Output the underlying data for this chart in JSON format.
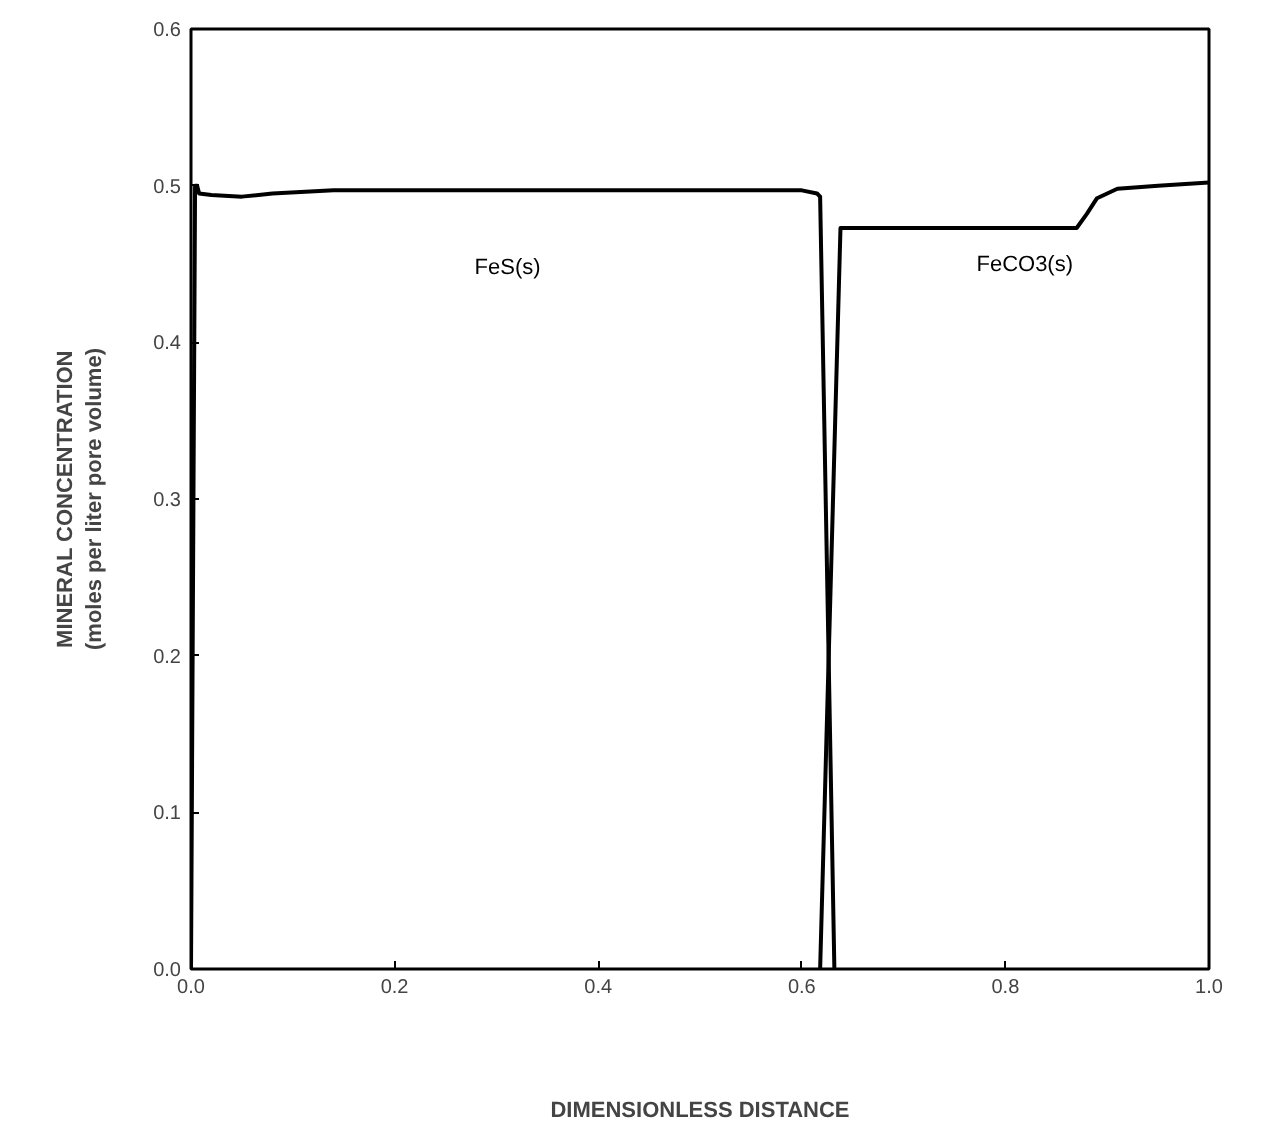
{
  "chart_data": {
    "type": "line",
    "xlabel": "DIMENSIONLESS DISTANCE",
    "ylabel": "MINERAL CONCENTRATION\n(moles per liter pore volume)",
    "xlim": [
      0,
      1
    ],
    "ylim": [
      0,
      0.6
    ],
    "xticks": [
      {
        "value": 0,
        "label": "0.0"
      },
      {
        "value": 0.2,
        "label": "0.2"
      },
      {
        "value": 0.4,
        "label": "0.4"
      },
      {
        "value": 0.6,
        "label": "0.6"
      },
      {
        "value": 0.8,
        "label": "0.8"
      },
      {
        "value": 1,
        "label": "1.0"
      }
    ],
    "yticks": [
      {
        "value": 0,
        "label": "0.0"
      },
      {
        "value": 0.1,
        "label": "0.1"
      },
      {
        "value": 0.2,
        "label": "0.2"
      },
      {
        "value": 0.3,
        "label": "0.3"
      },
      {
        "value": 0.4,
        "label": "0.4"
      },
      {
        "value": 0.5,
        "label": "0.5"
      },
      {
        "value": 0.6,
        "label": "0.6"
      }
    ],
    "grid": false,
    "legend": false,
    "line_style": "solid",
    "series": [
      {
        "name": "FeS(s)",
        "color": "#000000",
        "x": [
          0,
          0.004,
          0.006,
          0.008,
          0.02,
          0.05,
          0.08,
          0.14,
          0.4,
          0.6,
          0.615,
          0.618,
          0.632
        ],
        "values": [
          0,
          0.5,
          0.5,
          0.495,
          0.494,
          0.493,
          0.495,
          0.497,
          0.497,
          0.497,
          0.495,
          0.493,
          0
        ]
      },
      {
        "name": "FeCO3(s)",
        "color": "#000000",
        "x": [
          0.618,
          0.638,
          0.87,
          0.88,
          0.89,
          0.91,
          0.95,
          1.0
        ],
        "values": [
          0,
          0.473,
          0.473,
          0.482,
          0.492,
          0.498,
          0.5,
          0.502
        ]
      }
    ]
  }
}
